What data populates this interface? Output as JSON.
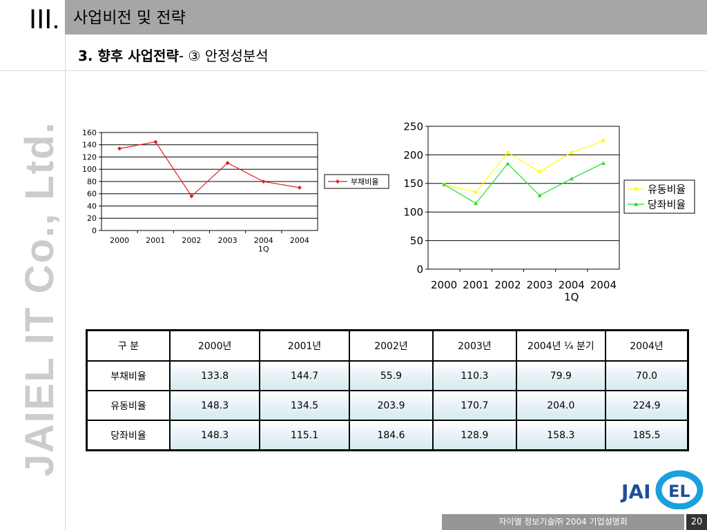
{
  "header": {
    "section_number": "III.",
    "section_title": "사업비전 및 전략",
    "subtitle_bold": "3. 향후 사업전략",
    "subtitle_rest": "- ③ 안정성분석"
  },
  "watermark": "JAIEL IT Co., Ltd.",
  "chart_data": [
    {
      "type": "line",
      "categories": [
        "2000",
        "2001",
        "2002",
        "2003",
        "2004\n1Q",
        "2004"
      ],
      "category_lines": [
        [
          "2000"
        ],
        [
          "2001"
        ],
        [
          "2002"
        ],
        [
          "2003"
        ],
        [
          "2004",
          "1Q"
        ],
        [
          "2004"
        ]
      ],
      "yticks": [
        "0",
        "20",
        "40",
        "60",
        "80",
        "100",
        "120",
        "140",
        "160"
      ],
      "ylim": [
        0,
        160
      ],
      "grid": true,
      "legend_position": "right",
      "series": [
        {
          "name": "부채비율",
          "values": [
            133.8,
            144.7,
            55.9,
            110.3,
            79.9,
            70.0
          ],
          "color": "#e11d1d",
          "marker": "diamond"
        }
      ]
    },
    {
      "type": "line",
      "categories": [
        "2000",
        "2001",
        "2002",
        "2003",
        "2004\n1Q",
        "2004"
      ],
      "category_lines": [
        [
          "2000"
        ],
        [
          "2001"
        ],
        [
          "2002"
        ],
        [
          "2003"
        ],
        [
          "2004",
          "1Q"
        ],
        [
          "2004"
        ]
      ],
      "yticks": [
        "0",
        "50",
        "100",
        "150",
        "200",
        "250"
      ],
      "ylim": [
        0,
        250
      ],
      "grid": true,
      "legend_position": "right",
      "series": [
        {
          "name": "유동비율",
          "values": [
            148.3,
            134.5,
            203.9,
            170.7,
            204.0,
            224.9
          ],
          "color": "#ffff00",
          "marker": "square"
        },
        {
          "name": "당좌비율",
          "values": [
            148.3,
            115.1,
            184.6,
            128.9,
            158.3,
            185.5
          ],
          "color": "#22dd22",
          "marker": "triangle"
        }
      ]
    }
  ],
  "table": {
    "headers": [
      "구 분",
      "2000년",
      "2001년",
      "2002년",
      "2003년",
      "2004년 ¼ 분기",
      "2004년"
    ],
    "rows": [
      [
        "부채비율",
        "133.8",
        "144.7",
        "55.9",
        "110.3",
        "79.9",
        "70.0"
      ],
      [
        "유동비율",
        "148.3",
        "134.5",
        "203.9",
        "170.7",
        "204.0",
        "224.9"
      ],
      [
        "당좌비율",
        "148.3",
        "115.1",
        "184.6",
        "128.9",
        "158.3",
        "185.5"
      ]
    ]
  },
  "footer": {
    "text": "자이엘 정보기술㈜   2004 기업설명회",
    "page": "20"
  },
  "logo": {
    "text_left": "JAI",
    "text_right": "EL",
    "color_text": "#1f4e9a",
    "color_swoosh": "#1aa0de"
  }
}
